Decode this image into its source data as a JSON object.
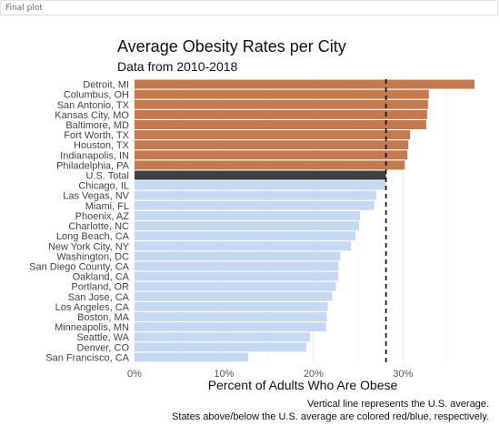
{
  "window": {
    "title": "Final plot"
  },
  "chart_data": {
    "type": "bar",
    "orientation": "horizontal",
    "title": "Average Obesity Rates per City",
    "subtitle": "Data from 2010-2018",
    "xlabel": "Percent of Adults Who Are Obese",
    "ylabel": "",
    "xlim": [
      0,
      38
    ],
    "xticks": [
      0,
      10,
      20,
      30
    ],
    "xtick_labels": [
      "0%",
      "10%",
      "20%",
      "30%"
    ],
    "grid": true,
    "reference_line": {
      "value": 28.1,
      "style": "dashed"
    },
    "colors": {
      "above": "#c47a4f",
      "below": "#c6d9f3",
      "total": "#404040",
      "reference": "#000000"
    },
    "categories": [
      "Detroit, MI",
      "Columbus, OH",
      "San Antonio, TX",
      "Kansas City, MO",
      "Baltimore, MD",
      "Fort Worth, TX",
      "Houston, TX",
      "Indianapolis, IN",
      "Philadelphia, PA",
      "U.S. Total",
      "Chicago, IL",
      "Las Vegas, NV",
      "Miami, FL",
      "Phoenix, AZ",
      "Charlotte, NC",
      "Long Beach, CA",
      "New York City, NY",
      "Washington, DC",
      "San Diego County, CA",
      "Oakland, CA",
      "Portland, OR",
      "San Jose, CA",
      "Los Angeles, CA",
      "Boston, MA",
      "Minneapolis, MN",
      "Seattle, WA",
      "Denver, CO",
      "San Francisco, CA"
    ],
    "values": [
      38.0,
      32.9,
      32.8,
      32.7,
      32.6,
      30.8,
      30.6,
      30.5,
      30.2,
      28.1,
      28.1,
      27.0,
      26.8,
      25.2,
      25.1,
      24.7,
      24.2,
      23.0,
      22.8,
      22.8,
      22.5,
      22.1,
      21.6,
      21.5,
      21.4,
      19.6,
      19.2,
      12.7
    ],
    "groups": [
      "above",
      "above",
      "above",
      "above",
      "above",
      "above",
      "above",
      "above",
      "above",
      "total",
      "below",
      "below",
      "below",
      "below",
      "below",
      "below",
      "below",
      "below",
      "below",
      "below",
      "below",
      "below",
      "below",
      "below",
      "below",
      "below",
      "below",
      "below"
    ],
    "caption": [
      "Vertical line represents the U.S. average.",
      "States above/below the U.S. average are colored red/blue, respectively."
    ]
  }
}
